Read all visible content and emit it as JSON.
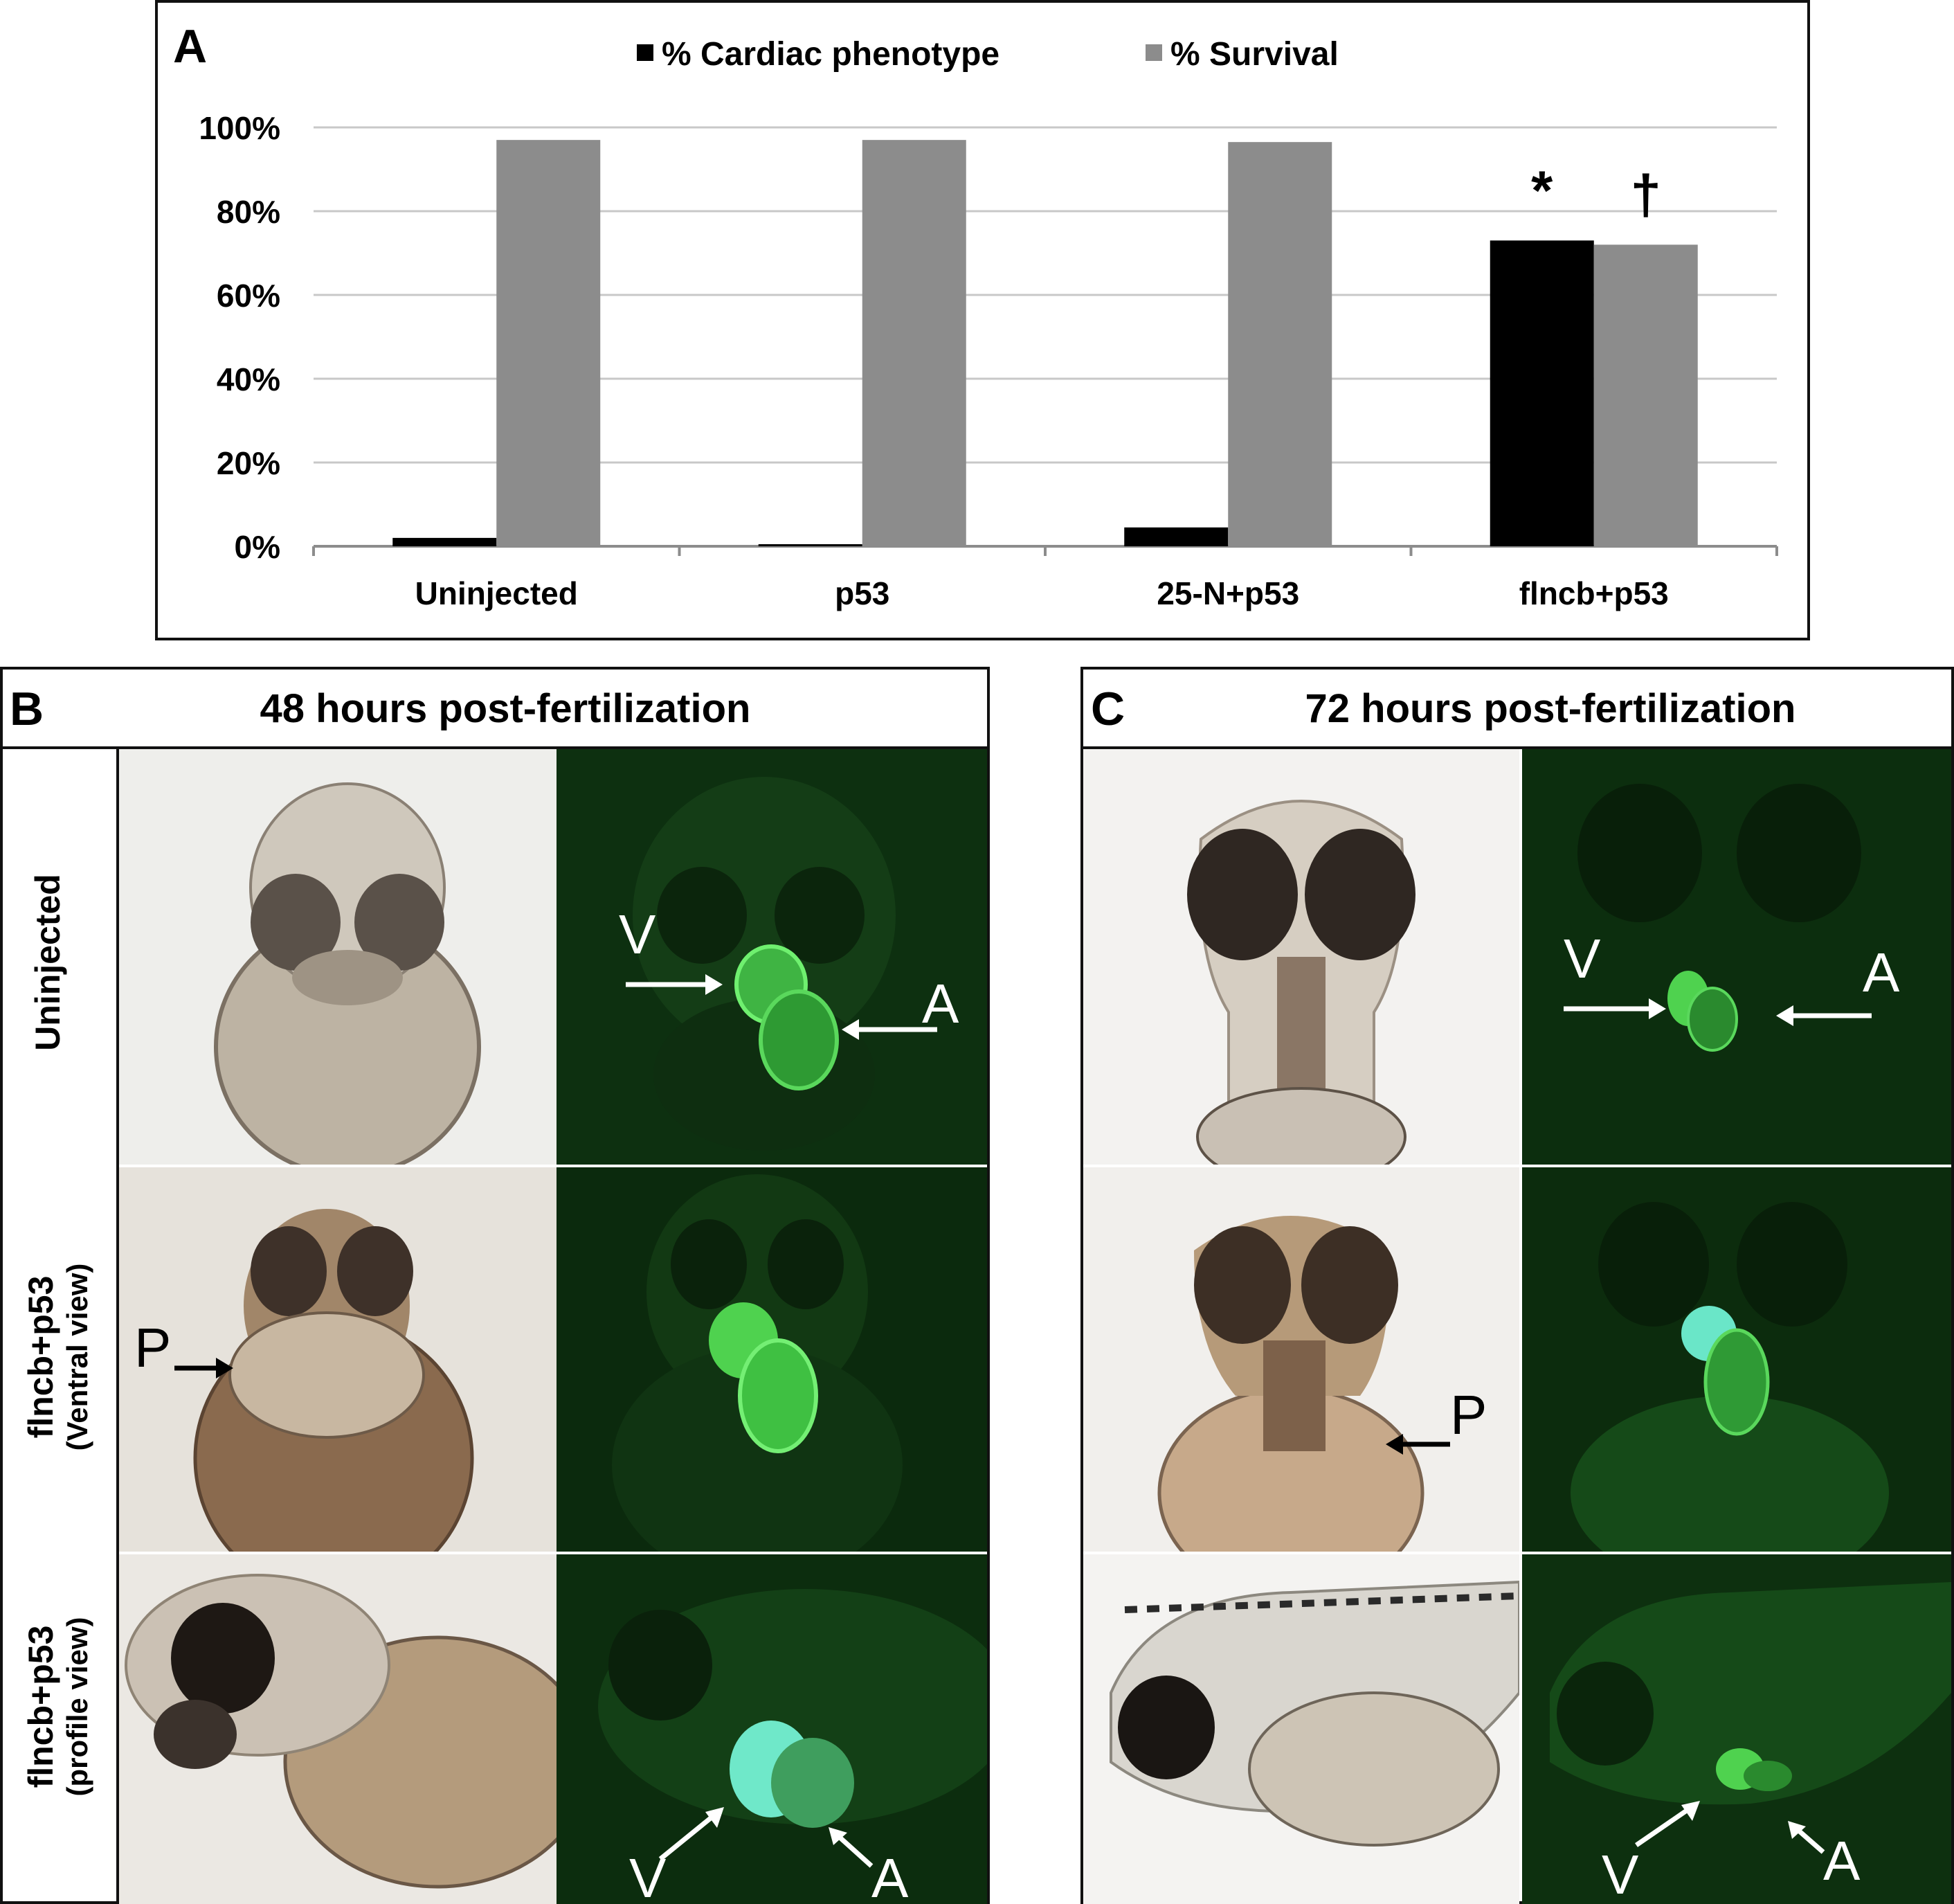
{
  "chart_data": {
    "type": "bar",
    "panel_label": "A",
    "categories": [
      "Uninjected",
      "p53",
      "25-N+p53",
      "flncb+p53"
    ],
    "series": [
      {
        "name": "% Cardiac phenotype",
        "values": [
          2,
          0.5,
          4.5,
          73
        ],
        "color": "#000000"
      },
      {
        "name": "% Survival",
        "values": [
          97,
          97,
          96.5,
          72
        ],
        "color": "#8c8c8c"
      }
    ],
    "yticks": [
      "0%",
      "20%",
      "40%",
      "60%",
      "80%",
      "100%"
    ],
    "ylim": [
      0,
      100
    ],
    "grid": true,
    "legend_position": "top-center",
    "annotations": [
      {
        "text": "*",
        "category": "flncb+p53",
        "series": "% Cardiac phenotype"
      },
      {
        "text": "†",
        "category": "flncb+p53",
        "series": "% Survival"
      }
    ]
  },
  "panel_b": {
    "letter": "B",
    "title": "48 hours post‑fertilization",
    "rows": [
      {
        "line1": "Uninjected",
        "line2": ""
      },
      {
        "line1": "flncb+p53",
        "line2": "(Ventral view)"
      },
      {
        "line1": "flncb+p53",
        "line2": "(profile view)"
      }
    ]
  },
  "panel_c": {
    "letter": "C",
    "title": "72 hours post‑fertilization"
  },
  "image_labels": {
    "v": "V",
    "a": "A",
    "p": "P"
  }
}
